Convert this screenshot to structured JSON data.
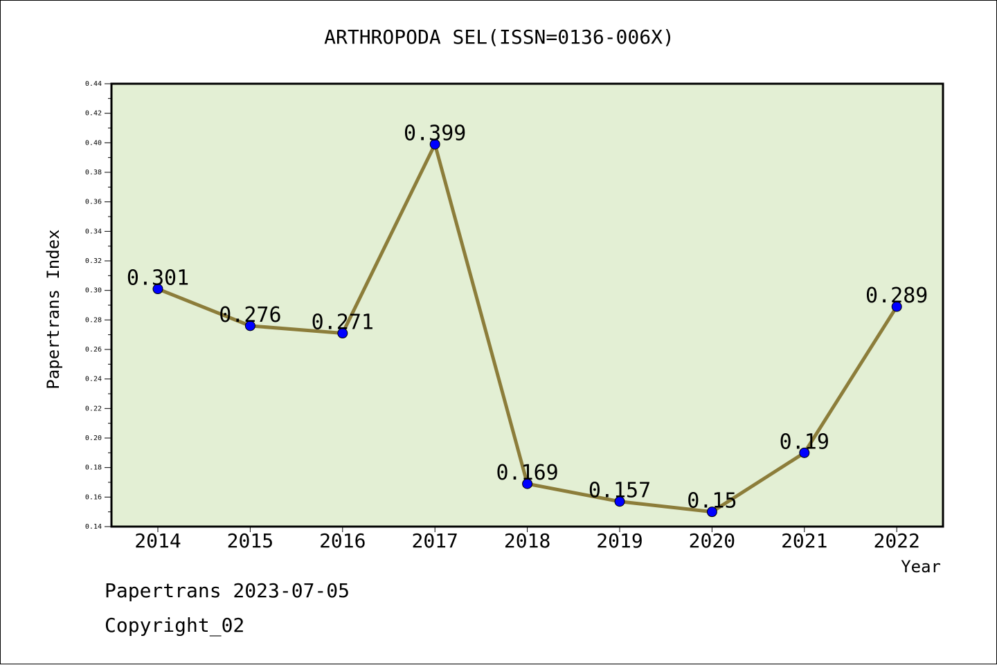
{
  "chart_data": {
    "type": "line",
    "title": "ARTHROPODA SEL(ISSN=0136-006X)",
    "xlabel": "Year",
    "ylabel": "Papertrans Index",
    "categories": [
      "2014",
      "2015",
      "2016",
      "2017",
      "2018",
      "2019",
      "2020",
      "2021",
      "2022"
    ],
    "series": [
      {
        "values": [
          0.301,
          0.276,
          0.271,
          0.399,
          0.169,
          0.157,
          0.15,
          0.19,
          0.289
        ],
        "labels": [
          "0.301",
          "0.276",
          "0.271",
          "0.399",
          "0.169",
          "0.157",
          "0.15",
          "0.19",
          "0.289"
        ]
      }
    ],
    "ylim": [
      0.14,
      0.44
    ],
    "yticks": [
      "0.14",
      "0.16",
      "0.18",
      "0.20",
      "0.22",
      "0.24",
      "0.26",
      "0.28",
      "0.30",
      "0.32",
      "0.34",
      "0.36",
      "0.38",
      "0.40",
      "0.42",
      "0.44"
    ],
    "grid": false,
    "legend": "none",
    "colors": {
      "plot_background": "#e3efd4",
      "line": "#8c7d3a",
      "marker": "#0000ff"
    }
  },
  "footer": {
    "date_line": "Papertrans 2023-07-05",
    "copyright_line": "Copyright_02"
  }
}
